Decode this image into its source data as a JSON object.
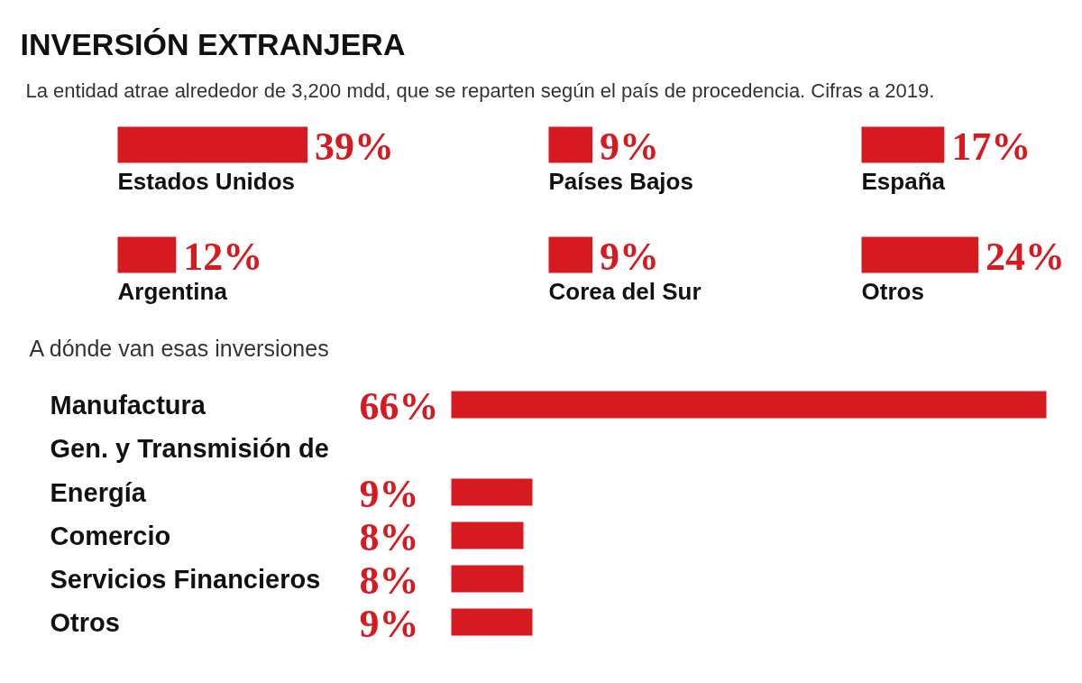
{
  "chart_data": [
    {
      "type": "other",
      "title": "INVERSIÓN EXTRANJERA",
      "subtitle": "La entidad atrae alrededor de 3,200 mdd, que se reparten según el país de procedencia. Cifras a 2019."
    },
    {
      "type": "bar",
      "orientation": "horizontal",
      "categories": [
        "Estados Unidos"
      ],
      "values": [
        39
      ],
      "value_labels": [
        "39%"
      ],
      "color": "#d71920"
    },
    {
      "type": "bar",
      "orientation": "horizontal",
      "categories": [
        "Países Bajos"
      ],
      "values": [
        9
      ],
      "value_labels": [
        "9%"
      ],
      "color": "#d71920"
    },
    {
      "type": "bar",
      "orientation": "horizontal",
      "categories": [
        "España"
      ],
      "values": [
        17
      ],
      "value_labels": [
        "17%"
      ],
      "color": "#d71920"
    },
    {
      "type": "bar",
      "orientation": "horizontal",
      "categories": [
        "Argentina"
      ],
      "values": [
        12
      ],
      "value_labels": [
        "12%"
      ],
      "color": "#d71920"
    },
    {
      "type": "bar",
      "orientation": "horizontal",
      "categories": [
        "Corea del Sur"
      ],
      "values": [
        9
      ],
      "value_labels": [
        "9%"
      ],
      "color": "#d71920"
    },
    {
      "type": "bar",
      "orientation": "horizontal",
      "categories": [
        "Otros"
      ],
      "values": [
        24
      ],
      "value_labels": [
        "24%"
      ],
      "color": "#d71920"
    },
    {
      "type": "bar",
      "orientation": "horizontal",
      "title": "A dónde van esas inversiones",
      "categories": [
        "Manufactura",
        "Gen. y Transmisión de Energía",
        "Comercio",
        "Servicios Financieros",
        "Otros"
      ],
      "values": [
        66,
        9,
        8,
        8,
        9
      ],
      "value_labels": [
        "66%",
        "9%",
        "8%",
        "8%",
        "9%"
      ],
      "color": "#d71920"
    }
  ]
}
